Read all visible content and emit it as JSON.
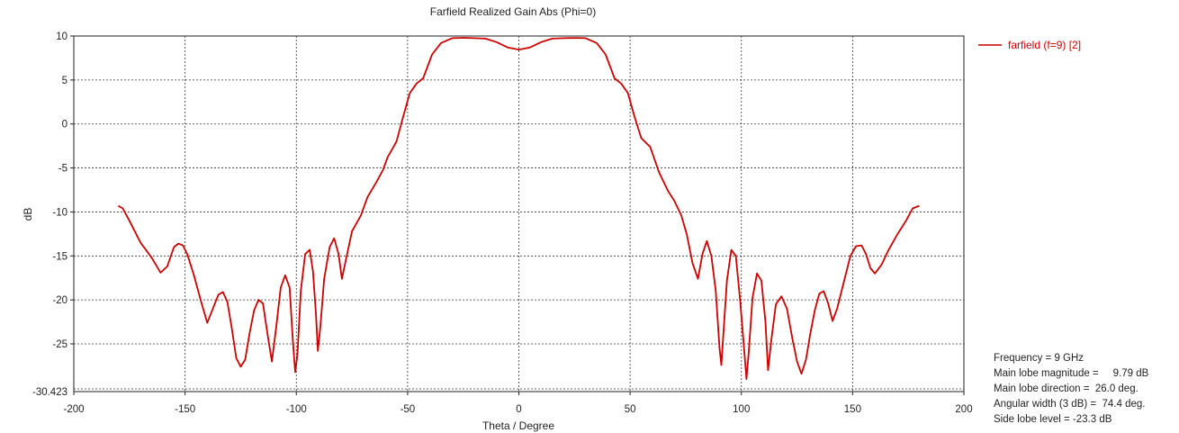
{
  "chart_data": {
    "type": "line",
    "title": "Farfield Realized Gain Abs (Phi=0)",
    "xlabel": "Theta / Degree",
    "ylabel": "dB",
    "xlim": [
      -200,
      200
    ],
    "ylim": [
      -30.423,
      10
    ],
    "x_ticks": [
      -200,
      -150,
      -100,
      -50,
      0,
      50,
      100,
      150,
      200
    ],
    "y_ticks": [
      10,
      5,
      0,
      -5,
      -10,
      -15,
      -20,
      -25
    ],
    "y_min_label": "-30.423",
    "grid": true,
    "legend_position": "top-right",
    "series": [
      {
        "name": "farfield (f=9) [2]",
        "color": "#cc0000",
        "points": [
          [
            -180,
            -9.3
          ],
          [
            -178,
            -9.6
          ],
          [
            -175,
            -11.0
          ],
          [
            -170,
            -13.5
          ],
          [
            -165,
            -15.2
          ],
          [
            -161,
            -16.9
          ],
          [
            -158,
            -16.2
          ],
          [
            -155,
            -14.0
          ],
          [
            -153,
            -13.6
          ],
          [
            -151,
            -13.8
          ],
          [
            -149,
            -14.8
          ],
          [
            -146,
            -17.2
          ],
          [
            -143,
            -20.0
          ],
          [
            -140,
            -22.6
          ],
          [
            -138,
            -21.3
          ],
          [
            -135,
            -19.4
          ],
          [
            -133,
            -19.1
          ],
          [
            -131,
            -20.2
          ],
          [
            -129,
            -23.2
          ],
          [
            -127,
            -26.6
          ],
          [
            -125,
            -27.6
          ],
          [
            -123,
            -26.8
          ],
          [
            -121,
            -23.8
          ],
          [
            -119,
            -21.2
          ],
          [
            -117,
            -20.0
          ],
          [
            -115,
            -20.4
          ],
          [
            -113,
            -23.8
          ],
          [
            -111,
            -27.0
          ],
          [
            -109,
            -23.0
          ],
          [
            -107,
            -18.6
          ],
          [
            -105,
            -17.2
          ],
          [
            -103,
            -18.6
          ],
          [
            -101.5,
            -24.8
          ],
          [
            -100.5,
            -28.2
          ],
          [
            -99.5,
            -26.2
          ],
          [
            -98,
            -19.0
          ],
          [
            -96,
            -14.8
          ],
          [
            -94,
            -14.3
          ],
          [
            -92.5,
            -16.8
          ],
          [
            -91.2,
            -21.5
          ],
          [
            -90.3,
            -25.8
          ],
          [
            -89.2,
            -23.0
          ],
          [
            -87.5,
            -17.6
          ],
          [
            -85,
            -14.0
          ],
          [
            -83,
            -13.0
          ],
          [
            -81,
            -14.8
          ],
          [
            -79.5,
            -17.6
          ],
          [
            -78,
            -15.8
          ],
          [
            -75,
            -12.2
          ],
          [
            -71,
            -10.4
          ],
          [
            -68,
            -8.3
          ],
          [
            -64,
            -6.6
          ],
          [
            -61,
            -5.2
          ],
          [
            -59,
            -3.8
          ],
          [
            -55,
            -2.0
          ],
          [
            -52,
            0.8
          ],
          [
            -49,
            3.5
          ],
          [
            -46,
            4.6
          ],
          [
            -43,
            5.2
          ],
          [
            -39,
            7.9
          ],
          [
            -35,
            9.2
          ],
          [
            -30,
            9.75
          ],
          [
            -25,
            9.8
          ],
          [
            -20,
            9.75
          ],
          [
            -15,
            9.7
          ],
          [
            -10,
            9.3
          ],
          [
            -5,
            8.7
          ],
          [
            0,
            8.45
          ],
          [
            5,
            8.7
          ],
          [
            10,
            9.3
          ],
          [
            15,
            9.7
          ],
          [
            20,
            9.75
          ],
          [
            26,
            9.79
          ],
          [
            30,
            9.75
          ],
          [
            35,
            9.2
          ],
          [
            39,
            7.9
          ],
          [
            43,
            5.2
          ],
          [
            46,
            4.6
          ],
          [
            49,
            3.5
          ],
          [
            52,
            0.8
          ],
          [
            55,
            -1.6
          ],
          [
            59,
            -2.6
          ],
          [
            63,
            -5.5
          ],
          [
            67,
            -7.6
          ],
          [
            70,
            -8.8
          ],
          [
            73,
            -10.4
          ],
          [
            75.5,
            -12.6
          ],
          [
            78,
            -15.8
          ],
          [
            80.5,
            -17.6
          ],
          [
            82.5,
            -14.8
          ],
          [
            84.5,
            -13.3
          ],
          [
            86.5,
            -15.0
          ],
          [
            88.5,
            -19.0
          ],
          [
            90.2,
            -25.5
          ],
          [
            91,
            -27.4
          ],
          [
            92,
            -23.5
          ],
          [
            93.5,
            -17.8
          ],
          [
            95.5,
            -14.3
          ],
          [
            97.5,
            -15.0
          ],
          [
            99.5,
            -20.2
          ],
          [
            101.5,
            -26.5
          ],
          [
            102.3,
            -29.0
          ],
          [
            103.3,
            -26.0
          ],
          [
            105,
            -19.8
          ],
          [
            107,
            -17.0
          ],
          [
            109,
            -17.8
          ],
          [
            110.8,
            -22.5
          ],
          [
            112,
            -28.0
          ],
          [
            113.5,
            -24.5
          ],
          [
            115.5,
            -20.5
          ],
          [
            118,
            -19.6
          ],
          [
            120.5,
            -21.0
          ],
          [
            123,
            -24.5
          ],
          [
            125,
            -27.0
          ],
          [
            127,
            -28.4
          ],
          [
            129,
            -26.8
          ],
          [
            131,
            -23.8
          ],
          [
            133,
            -21.2
          ],
          [
            135,
            -19.3
          ],
          [
            137,
            -19.0
          ],
          [
            139,
            -20.4
          ],
          [
            141,
            -22.4
          ],
          [
            143,
            -21.0
          ],
          [
            146,
            -18.0
          ],
          [
            149,
            -15.0
          ],
          [
            151.5,
            -13.9
          ],
          [
            154,
            -13.8
          ],
          [
            156,
            -14.8
          ],
          [
            158,
            -16.4
          ],
          [
            160,
            -17.0
          ],
          [
            163,
            -16.0
          ],
          [
            166,
            -14.4
          ],
          [
            170,
            -12.6
          ],
          [
            174,
            -11.0
          ],
          [
            177,
            -9.6
          ],
          [
            180,
            -9.3
          ]
        ]
      }
    ],
    "annotations": [
      "Frequency = 9 GHz",
      "Main lobe magnitude =     9.79 dB",
      "Main lobe direction =  26.0 deg.",
      "Angular width (3 dB) =  74.4 deg.",
      "Side lobe level = -23.3 dB"
    ]
  }
}
